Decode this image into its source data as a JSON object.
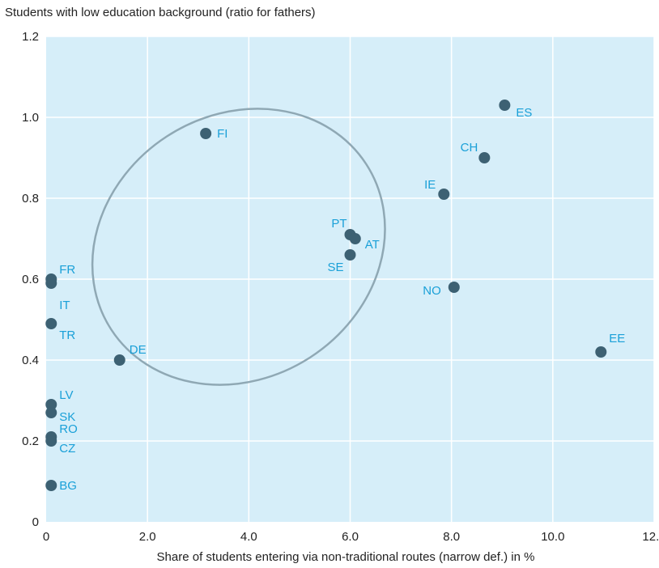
{
  "chart_data": {
    "type": "scatter",
    "title": "Students with low education background (ratio for fathers)",
    "xlabel": "Share of students entering via non-traditional routes (narrow def.) in %",
    "ylabel": "",
    "xlim": [
      0,
      12.0
    ],
    "ylim": [
      0,
      1.2
    ],
    "x_ticks": [
      "0",
      "2.0",
      "4.0",
      "6.0",
      "8.0",
      "10.0",
      "12.0"
    ],
    "y_ticks": [
      "0",
      "0.2",
      "0.4",
      "0.6",
      "0.8",
      "1.0",
      "1.2"
    ],
    "grid": true,
    "points": [
      {
        "label": "FI",
        "x": 3.15,
        "y": 0.96
      },
      {
        "label": "ES",
        "x": 9.05,
        "y": 1.03
      },
      {
        "label": "CH",
        "x": 8.65,
        "y": 0.9
      },
      {
        "label": "IE",
        "x": 7.85,
        "y": 0.81
      },
      {
        "label": "PT",
        "x": 6.0,
        "y": 0.71
      },
      {
        "label": "AT",
        "x": 6.1,
        "y": 0.7
      },
      {
        "label": "SE",
        "x": 6.0,
        "y": 0.66
      },
      {
        "label": "NO",
        "x": 8.05,
        "y": 0.58
      },
      {
        "label": "EE",
        "x": 10.95,
        "y": 0.42
      },
      {
        "label": "FR",
        "x": 0.1,
        "y": 0.6
      },
      {
        "label": "IT",
        "x": 0.1,
        "y": 0.59
      },
      {
        "label": "TR",
        "x": 0.1,
        "y": 0.49
      },
      {
        "label": "DE",
        "x": 1.45,
        "y": 0.4
      },
      {
        "label": "LV",
        "x": 0.1,
        "y": 0.29
      },
      {
        "label": "SK",
        "x": 0.1,
        "y": 0.27
      },
      {
        "label": "RO",
        "x": 0.1,
        "y": 0.21
      },
      {
        "label": "CZ",
        "x": 0.1,
        "y": 0.2
      },
      {
        "label": "BG",
        "x": 0.1,
        "y": 0.09
      }
    ],
    "highlight_ellipse": {
      "cx": 3.8,
      "cy": 0.68,
      "rx": 6.0,
      "ry": 1.55,
      "rotation_deg": -33
    },
    "colors": {
      "background": "#d6eef9",
      "grid": "#ffffff",
      "point": "#3d6173",
      "label": "#1aa0d8",
      "ellipse": "#8fa8b4"
    }
  }
}
